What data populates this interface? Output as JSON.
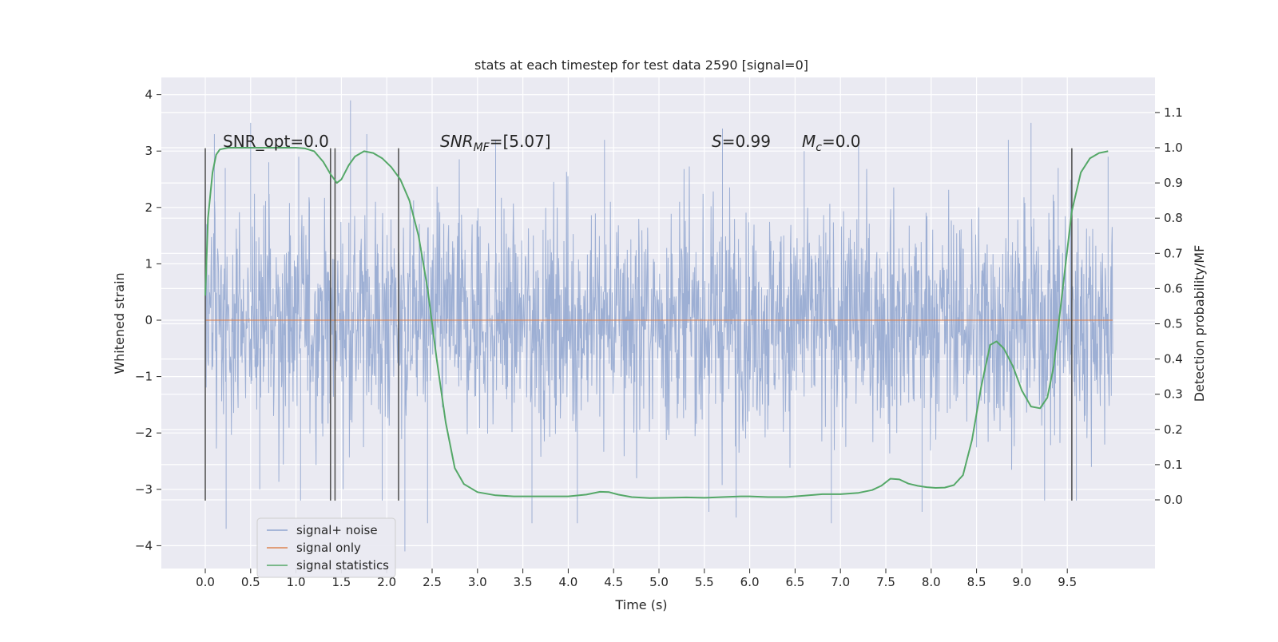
{
  "chart_data": {
    "type": "line",
    "title": "stats at each timestep for test data 2590 [signal=0]",
    "xlabel": "Time (s)",
    "ylabel_left": "Whitened strain",
    "ylabel_right": "Detection probability/MF",
    "xlim": [
      -0.5,
      10.5
    ],
    "ylim_left": [
      -4.4,
      4.3
    ],
    "ylim_right": [
      -0.2,
      1.2
    ],
    "x_ticks": [
      "0.0",
      "0.5",
      "1.0",
      "1.5",
      "2.0",
      "2.5",
      "3.0",
      "3.5",
      "4.0",
      "4.5",
      "5.0",
      "5.5",
      "6.0",
      "6.5",
      "7.0",
      "7.5",
      "8.0",
      "8.5",
      "9.0",
      "9.5"
    ],
    "y_left_ticks": [
      "4",
      "3",
      "2",
      "1",
      "0",
      "−1",
      "−2",
      "−3",
      "−4"
    ],
    "y_right_ticks": [
      "1.1",
      "1.0",
      "0.9",
      "0.8",
      "0.7",
      "0.6",
      "0.5",
      "0.4",
      "0.3",
      "0.2",
      "0.1",
      "0.0"
    ],
    "grid": true,
    "legend_position": "lower-left",
    "annotations": {
      "snr_opt": "SNR_opt=0.0",
      "snr_mf_prefix": "SNR",
      "snr_mf_sub": "MF",
      "snr_mf_suffix": "=[5.07]",
      "s_prefix": "S",
      "s_value": "=0.99",
      "mc_prefix": "M",
      "mc_sub": "c",
      "mc_value": "=0.0"
    },
    "series": [
      {
        "name": "signal+ noise",
        "color": "#8fa5cf",
        "description_axis": "left",
        "x_range": [
          0.0,
          10.0
        ],
        "envelope_peaks": {
          "max_up": [
            [
              0.1,
              3.3
            ],
            [
              0.22,
              2.7
            ],
            [
              0.5,
              3.5
            ],
            [
              0.7,
              2.8
            ],
            [
              1.03,
              2.9
            ],
            [
              1.6,
              3.9
            ],
            [
              1.78,
              3.3
            ],
            [
              3.2,
              3.2
            ],
            [
              4.4,
              3.2
            ],
            [
              5.7,
              3.4
            ],
            [
              6.6,
              3.0
            ],
            [
              7.2,
              3.2
            ],
            [
              8.85,
              3.2
            ],
            [
              9.1,
              3.5
            ],
            [
              9.4,
              2.7
            ],
            [
              9.95,
              2.9
            ]
          ],
          "max_down": [
            [
              0.23,
              -3.7
            ],
            [
              0.6,
              -3.0
            ],
            [
              1.05,
              -3.2
            ],
            [
              1.95,
              -3.2
            ],
            [
              2.2,
              -4.1
            ],
            [
              2.45,
              -3.6
            ],
            [
              3.6,
              -3.6
            ],
            [
              4.1,
              -3.6
            ],
            [
              5.55,
              -3.4
            ],
            [
              5.85,
              -3.5
            ],
            [
              6.9,
              -3.6
            ],
            [
              7.9,
              -3.4
            ],
            [
              9.25,
              -3.2
            ],
            [
              9.6,
              -3.2
            ]
          ]
        }
      },
      {
        "name": "signal only",
        "color": "#dd8452",
        "description_axis": "left",
        "x": [
          0.0,
          10.0
        ],
        "y": [
          0.0,
          0.0
        ]
      },
      {
        "name": "signal statistics",
        "color": "#55a868",
        "description_axis": "right",
        "x": [
          0.0,
          0.03,
          0.08,
          0.12,
          0.16,
          0.25,
          0.5,
          0.8,
          1.0,
          1.1,
          1.2,
          1.3,
          1.38,
          1.45,
          1.5,
          1.58,
          1.65,
          1.75,
          1.85,
          1.95,
          2.05,
          2.15,
          2.25,
          2.35,
          2.45,
          2.55,
          2.65,
          2.75,
          2.85,
          3.0,
          3.2,
          3.4,
          3.6,
          3.8,
          4.0,
          4.2,
          4.35,
          4.45,
          4.55,
          4.7,
          4.9,
          5.1,
          5.3,
          5.5,
          5.7,
          5.9,
          6.0,
          6.2,
          6.4,
          6.6,
          6.8,
          7.0,
          7.2,
          7.35,
          7.45,
          7.55,
          7.65,
          7.75,
          7.85,
          7.95,
          8.05,
          8.15,
          8.25,
          8.35,
          8.45,
          8.55,
          8.65,
          8.72,
          8.8,
          8.9,
          9.0,
          9.1,
          9.2,
          9.28,
          9.35,
          9.45,
          9.55,
          9.65,
          9.75,
          9.85,
          9.95
        ],
        "y": [
          0.58,
          0.8,
          0.93,
          0.98,
          0.995,
          1.0,
          1.0,
          1.0,
          1.0,
          0.998,
          0.99,
          0.96,
          0.925,
          0.9,
          0.91,
          0.95,
          0.975,
          0.99,
          0.985,
          0.97,
          0.945,
          0.91,
          0.85,
          0.75,
          0.6,
          0.4,
          0.22,
          0.09,
          0.045,
          0.022,
          0.013,
          0.01,
          0.01,
          0.01,
          0.01,
          0.015,
          0.023,
          0.022,
          0.015,
          0.008,
          0.005,
          0.006,
          0.007,
          0.006,
          0.008,
          0.01,
          0.01,
          0.008,
          0.008,
          0.012,
          0.016,
          0.016,
          0.02,
          0.028,
          0.04,
          0.06,
          0.058,
          0.046,
          0.04,
          0.036,
          0.034,
          0.035,
          0.042,
          0.07,
          0.17,
          0.32,
          0.44,
          0.45,
          0.43,
          0.38,
          0.31,
          0.265,
          0.26,
          0.29,
          0.38,
          0.6,
          0.82,
          0.93,
          0.97,
          0.985,
          0.99
        ]
      }
    ],
    "vertical_markers": [
      {
        "x": 0.0,
        "y1": -3.2,
        "y2": 3.05
      },
      {
        "x": 1.38,
        "y1": -3.2,
        "y2": 3.05
      },
      {
        "x": 1.43,
        "y1": -3.2,
        "y2": 3.05
      },
      {
        "x": 2.13,
        "y1": -3.2,
        "y2": 3.05
      },
      {
        "x": 9.55,
        "y1": -3.2,
        "y2": 3.05
      }
    ]
  }
}
